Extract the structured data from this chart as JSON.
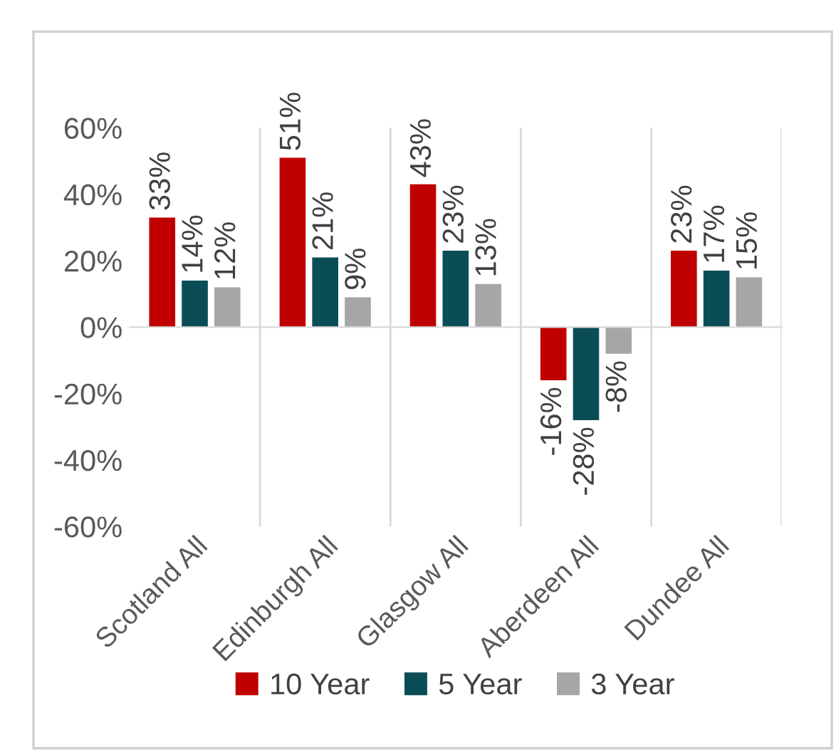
{
  "chart_data": {
    "type": "bar",
    "categories": [
      "Scotland All",
      "Edinburgh All",
      "Glasgow All",
      "Aberdeen All",
      "Dundee All"
    ],
    "series": [
      {
        "name": "10 Year",
        "color": "#c00000",
        "values": [
          33,
          51,
          43,
          -16,
          23
        ],
        "value_labels": [
          "33%",
          "51%",
          "43%",
          "-16%",
          "23%"
        ]
      },
      {
        "name": "5 Year",
        "color": "#0b4d57",
        "values": [
          14,
          21,
          23,
          -28,
          17
        ],
        "value_labels": [
          "14%",
          "21%",
          "23%",
          "-28%",
          "17%"
        ]
      },
      {
        "name": "3 Year",
        "color": "#a6a6a6",
        "values": [
          12,
          9,
          13,
          -8,
          15
        ],
        "value_labels": [
          "12%",
          "9%",
          "13%",
          "-8%",
          "15%"
        ]
      }
    ],
    "ylim": [
      -60,
      60
    ],
    "yticks": [
      {
        "value": -60,
        "label": "-60%"
      },
      {
        "value": -40,
        "label": "-40%"
      },
      {
        "value": -20,
        "label": "-20%"
      },
      {
        "value": 0,
        "label": "0%"
      },
      {
        "value": 20,
        "label": "20%"
      },
      {
        "value": 40,
        "label": "40%"
      },
      {
        "value": 60,
        "label": "60%"
      }
    ],
    "grid": "x",
    "legend": "bottom"
  }
}
